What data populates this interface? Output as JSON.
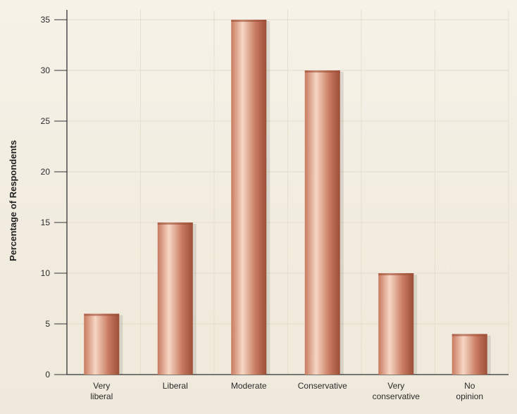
{
  "chart_data": {
    "type": "bar",
    "title": "",
    "xlabel": "",
    "ylabel": "Percentage of Respondents",
    "ylim": [
      0,
      35
    ],
    "yticks": [
      0,
      5,
      10,
      15,
      20,
      25,
      30,
      35
    ],
    "grid": true,
    "categories": [
      [
        "Very",
        "liberal"
      ],
      [
        "Liberal"
      ],
      [
        "Moderate"
      ],
      [
        "Conservative"
      ],
      [
        "Very",
        "conservative"
      ],
      [
        "No",
        "opinion"
      ]
    ],
    "values": [
      6,
      15,
      35,
      30,
      10,
      4
    ],
    "bar_color": "#c8795e",
    "bar_highlight": "#f6d6c4",
    "bar_shadow": "#9c4f38"
  }
}
